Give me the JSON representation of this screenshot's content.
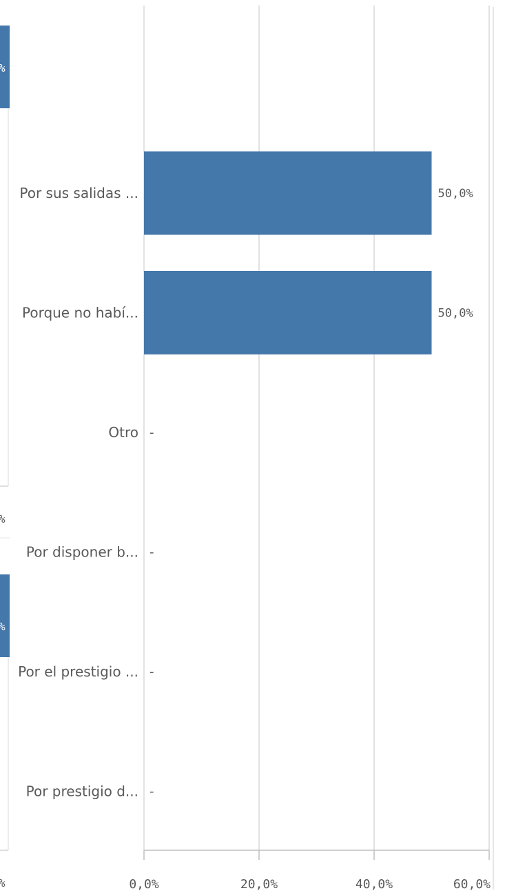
{
  "colors": {
    "bar": "#4477aa",
    "grid": "#d9d9d9",
    "axis": "#bfbfbf",
    "text": "#595959"
  },
  "left_panel_fragments": {
    "top_bar_label": "%",
    "top_axis_label": "%",
    "bottom_bar_label": "%",
    "bottom_axis_label": "%"
  },
  "chart_data": {
    "type": "bar",
    "orientation": "horizontal",
    "categories": [
      "Por sus salidas ...",
      "Porque no habí...",
      "Otro",
      "Por disponer b...",
      "Por el prestigio ...",
      "Por prestigio d..."
    ],
    "values": [
      50.0,
      50.0,
      null,
      null,
      null,
      null
    ],
    "value_labels": [
      "50,0%",
      "50,0%",
      "-",
      "-",
      "-",
      "-"
    ],
    "xlim": [
      0,
      60
    ],
    "x_ticks": [
      0,
      20,
      40,
      60
    ],
    "x_tick_labels": [
      "0,0%",
      "20,0%",
      "40,0%",
      "60,0%"
    ],
    "grid": true
  }
}
